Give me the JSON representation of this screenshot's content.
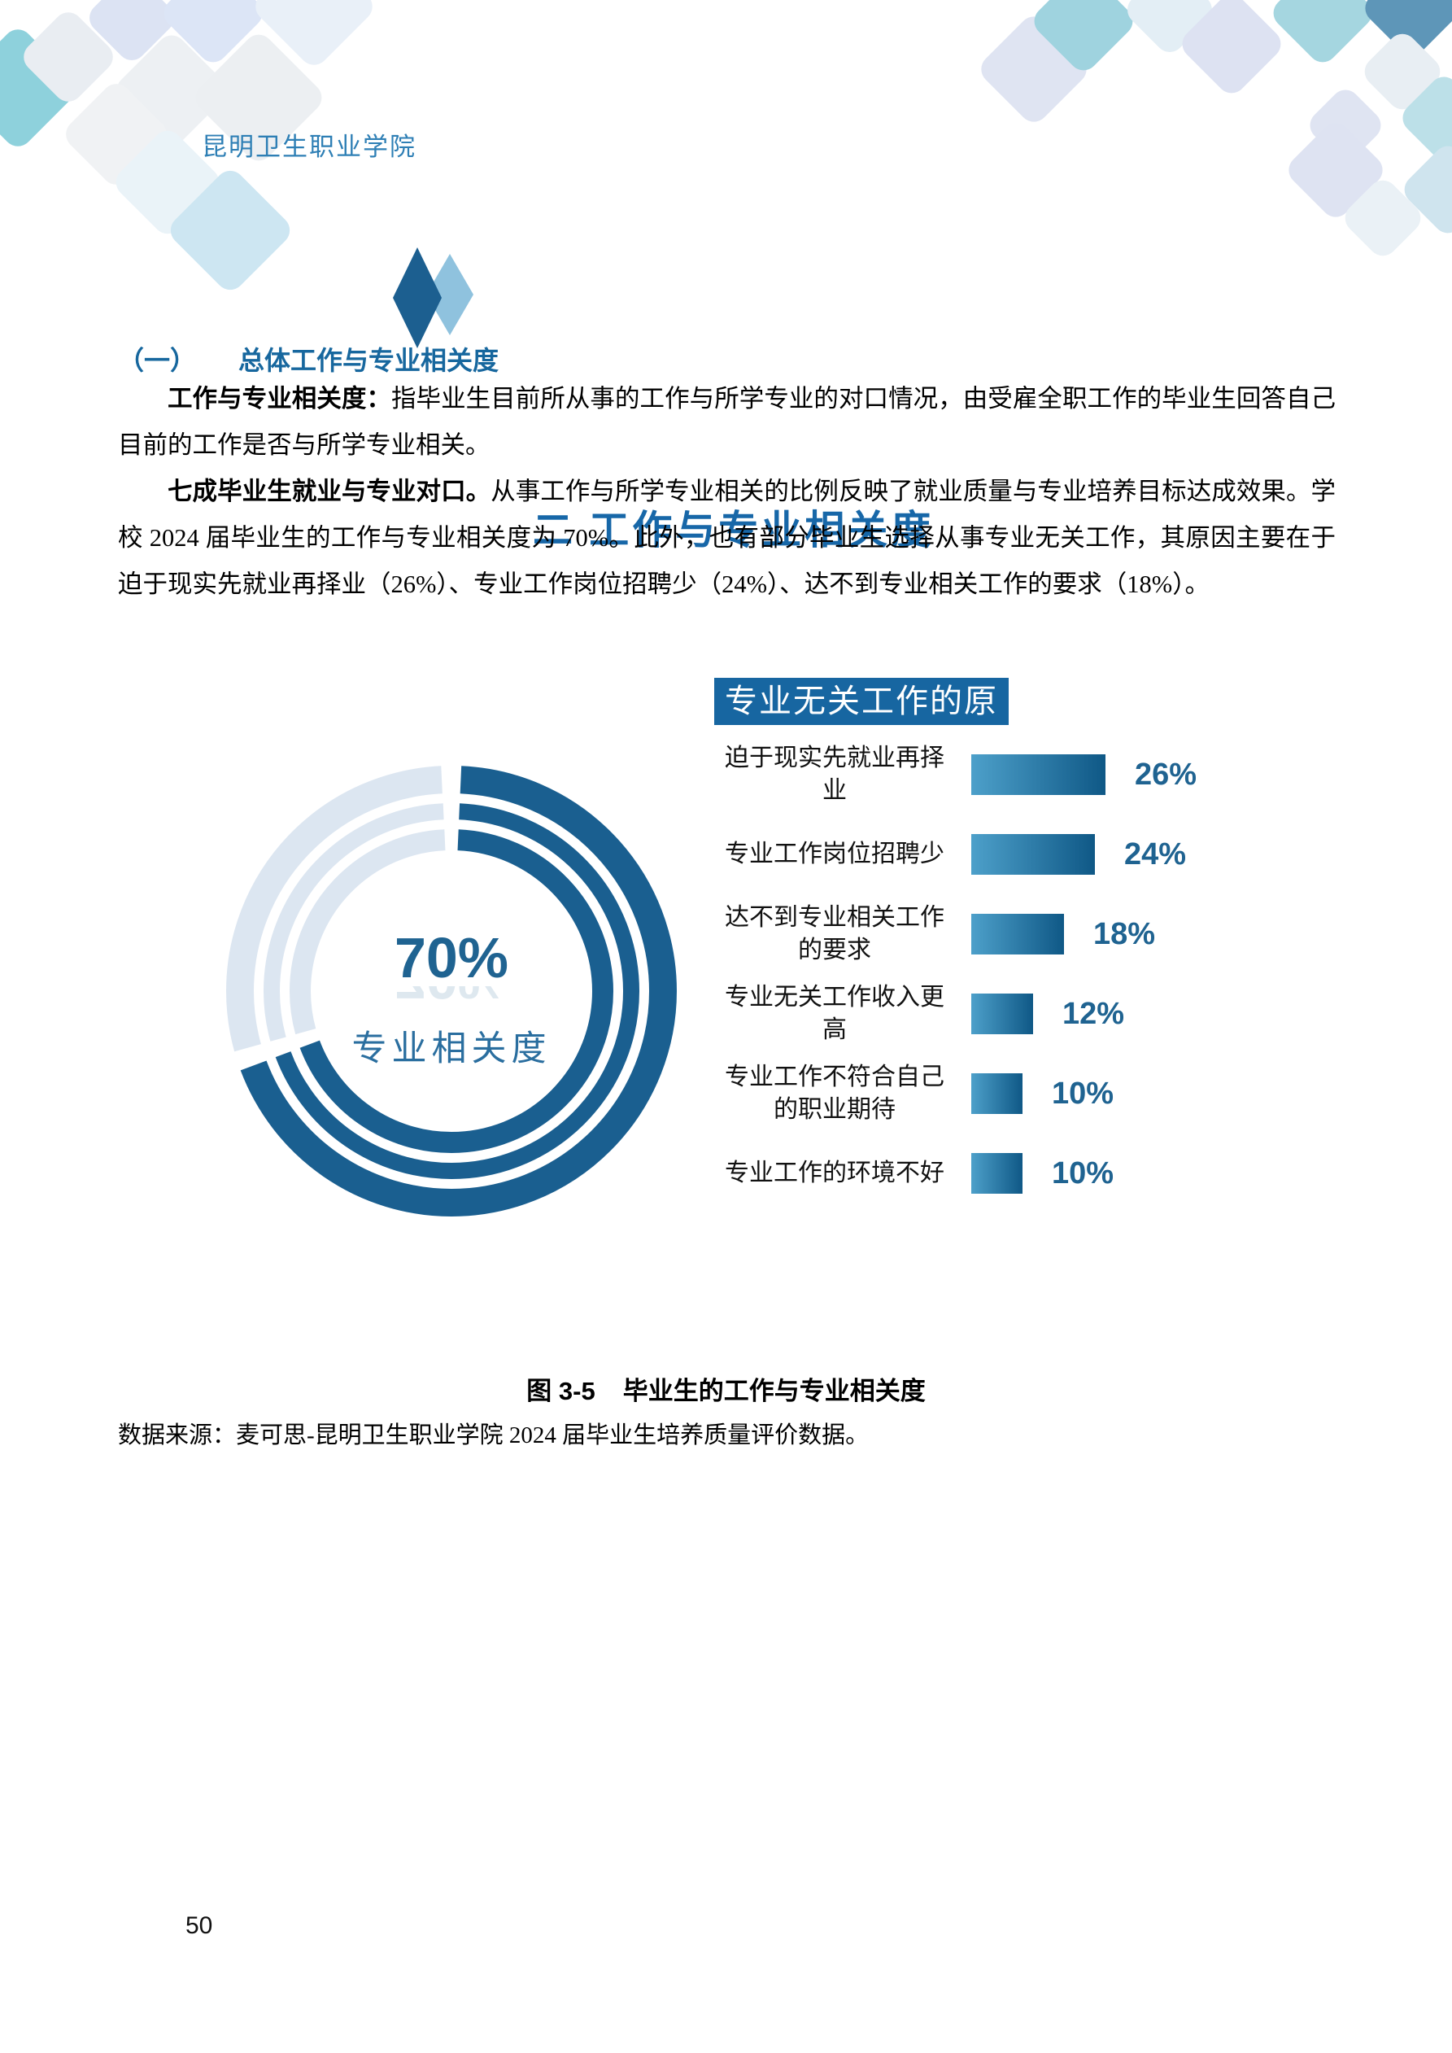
{
  "header": {
    "school_name": "昆明卫生职业学院",
    "page_number": "50"
  },
  "title": {
    "text": "二 工作与专业相关度"
  },
  "section": {
    "numbering": "（一）",
    "heading": "总体工作与专业相关度"
  },
  "paragraphs": [
    {
      "lead": "工作与专业相关度：",
      "body": "指毕业生目前所从事的工作与所学专业的对口情况，由受雇全职工作的毕业生回答自己目前的工作是否与所学专业相关。"
    },
    {
      "lead": "七成毕业生就业与专业对口。",
      "body": "从事工作与所学专业相关的比例反映了就业质量与专业培养目标达成效果。学校 2024 届毕业生的工作与专业相关度为 70%。此外，也有部分毕业生选择从事专业无关工作，其原因主要在于迫于现实先就业再择业（26%）、专业工作岗位招聘少（24%）、达不到专业相关工作的要求（18%）。"
    }
  ],
  "chart_data": [
    {
      "type": "pie",
      "subtype": "donut-rings",
      "center_value": "70%",
      "center_label": "专业相关度",
      "slices": [
        {
          "label": "专业相关",
          "value": 70
        },
        {
          "label": "专业无关",
          "value": 30
        }
      ],
      "legend_position": "none"
    },
    {
      "type": "bar",
      "orientation": "horizontal",
      "title": "专业无关工作的原因",
      "categories": [
        "迫于现实先就业再择业",
        "专业工作岗位招聘少",
        "达不到专业相关工作的要求",
        "专业无关工作收入更高",
        "专业工作不符合自己的职业期待",
        "专业工作的环境不好"
      ],
      "values": [
        26,
        24,
        18,
        12,
        10,
        10
      ],
      "data_labels": [
        "26%",
        "24%",
        "18%",
        "12%",
        "10%",
        "10%"
      ],
      "xlim": [
        0,
        30
      ],
      "grid": false,
      "legend_position": "none"
    }
  ],
  "figure": {
    "caption_label": "图 3-5",
    "caption_text": "毕业生的工作与专业相关度",
    "source": "数据来源：麦可思-昆明卫生职业学院 2024 届毕业生培养质量评价数据。"
  },
  "colors": {
    "header_text": "#2e7fb5",
    "heading_blue": "#17679e",
    "accent_box": "#1766a1",
    "donut_dark": "#1a5f90",
    "donut_light": "#dce6f1",
    "bar_gradient_start": "#4da0ca",
    "bar_gradient_end": "#0f5886",
    "value_label": "#1f6391"
  }
}
